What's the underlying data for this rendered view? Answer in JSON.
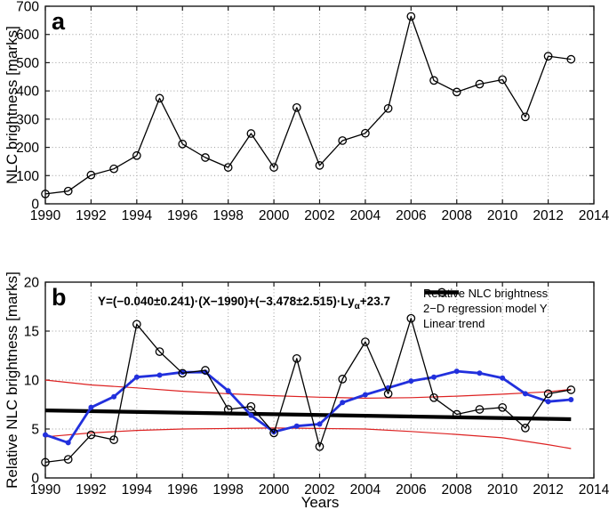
{
  "figure": {
    "panel_a_letter": "a",
    "panel_b_letter": "b",
    "equation": {
      "main": "Y=(−0.040±0.241)·(X−1990)+(−3.478±2.515)·Ly",
      "sub": "α",
      "tail": "+23.7"
    }
  },
  "chart_data": [
    {
      "id": "a",
      "type": "line",
      "title": "",
      "xlabel": "",
      "ylabel": "NLC brightness [marks]",
      "xlim": [
        1990,
        2014
      ],
      "ylim": [
        0,
        700
      ],
      "xticks": [
        1990,
        1992,
        1994,
        1996,
        1998,
        2000,
        2002,
        2004,
        2006,
        2008,
        2010,
        2012,
        2014
      ],
      "yticks": [
        0,
        100,
        200,
        300,
        400,
        500,
        600,
        700
      ],
      "grid": true,
      "x": [
        1990,
        1991,
        1992,
        1993,
        1994,
        1995,
        1996,
        1997,
        1998,
        1999,
        2000,
        2001,
        2002,
        2003,
        2004,
        2005,
        2006,
        2007,
        2008,
        2009,
        2010,
        2011,
        2012,
        2013
      ],
      "series": [
        {
          "name": "NLC brightness",
          "color": "#000000",
          "line_width": 1.3,
          "marker": "open-circle",
          "values": [
            35,
            45,
            102,
            124,
            171,
            374,
            212,
            164,
            129,
            249,
            129,
            341,
            136,
            224,
            250,
            338,
            664,
            437,
            396,
            424,
            440,
            308,
            523,
            512
          ]
        }
      ]
    },
    {
      "id": "b",
      "type": "line",
      "title": "",
      "xlabel": "Years",
      "ylabel": "Relative NLC brightness [marks]",
      "annotation": "Y=(−0.040±0.241)·(X−1990)+(−3.478±2.515)·Ly_α+23.7",
      "xlim": [
        1990,
        2014
      ],
      "ylim": [
        0,
        20
      ],
      "xticks": [
        1990,
        1992,
        1994,
        1996,
        1998,
        2000,
        2002,
        2004,
        2006,
        2008,
        2010,
        2012,
        2014
      ],
      "yticks": [
        0,
        5,
        10,
        15,
        20
      ],
      "grid": true,
      "x": [
        1990,
        1991,
        1992,
        1993,
        1994,
        1995,
        1996,
        1997,
        1998,
        1999,
        2000,
        2001,
        2002,
        2003,
        2004,
        2005,
        2006,
        2007,
        2008,
        2009,
        2010,
        2011,
        2012,
        2013
      ],
      "series": [
        {
          "name": "Linear trend",
          "color": "#000000",
          "line_width": 4.2,
          "marker": "none",
          "x": [
            1990,
            2013
          ],
          "values": [
            6.9,
            6.0
          ]
        },
        {
          "name": "Upper confidence bound",
          "color": "#dd2222",
          "line_width": 1.2,
          "marker": "none",
          "x": [
            1990,
            1992,
            1994,
            1996,
            1998,
            2000,
            2002,
            2004,
            2006,
            2008,
            2010,
            2012,
            2013
          ],
          "values": [
            10.0,
            9.5,
            9.2,
            8.85,
            8.6,
            8.4,
            8.25,
            8.15,
            8.2,
            8.35,
            8.55,
            8.8,
            9.05
          ]
        },
        {
          "name": "Lower confidence bound",
          "color": "#dd2222",
          "line_width": 1.2,
          "marker": "none",
          "x": [
            1990,
            1992,
            1994,
            1996,
            1998,
            2000,
            2002,
            2004,
            2006,
            2008,
            2010,
            2012,
            2013
          ],
          "values": [
            4.2,
            4.6,
            4.85,
            5.0,
            5.05,
            5.1,
            5.05,
            5.0,
            4.75,
            4.45,
            4.1,
            3.4,
            3.0
          ]
        },
        {
          "name": "2-D regression model Y",
          "color": "#2230dd",
          "line_width": 2.8,
          "marker": "dot",
          "values": [
            4.4,
            3.6,
            7.2,
            8.3,
            10.3,
            10.5,
            10.8,
            10.8,
            8.9,
            6.4,
            4.7,
            5.3,
            5.5,
            7.7,
            8.5,
            9.2,
            9.9,
            10.3,
            10.9,
            10.7,
            10.2,
            8.6,
            7.8,
            8.0
          ]
        },
        {
          "name": "Relative NLC brightness",
          "color": "#000000",
          "line_width": 1.3,
          "marker": "open-circle",
          "values": [
            1.6,
            1.9,
            4.4,
            3.9,
            15.7,
            12.9,
            10.7,
            11.0,
            7.0,
            7.3,
            4.6,
            12.2,
            3.2,
            10.1,
            13.9,
            8.6,
            16.3,
            8.2,
            6.5,
            7.0,
            7.2,
            5.1,
            8.6,
            9.0
          ]
        }
      ],
      "legend": {
        "position": "top-right",
        "border": false,
        "entries": [
          {
            "label": "Relative NLC brightness",
            "color": "#000000",
            "marker": "open-circle",
            "line_width": 1.3
          },
          {
            "label": "2−D regression model Y",
            "color": "#2230dd",
            "marker": "none",
            "line_width": 3
          },
          {
            "label": "Linear trend",
            "color": "#000000",
            "marker": "none",
            "line_width": 4.5
          }
        ]
      }
    }
  ]
}
